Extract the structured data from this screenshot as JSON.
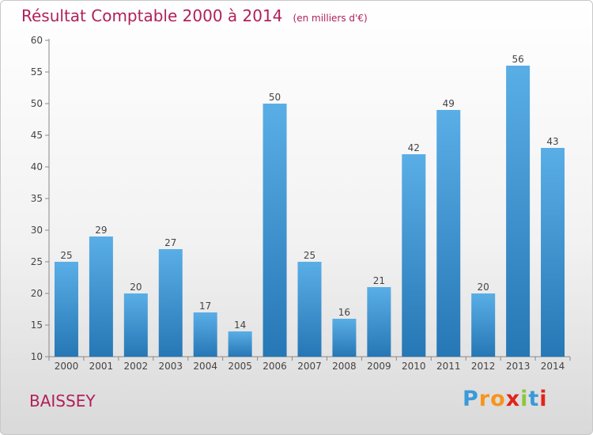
{
  "header": {
    "title": "Résultat Comptable 2000 à 2014",
    "subtitle": "(en milliers d'€)"
  },
  "commune": "BAISSEY",
  "logo": {
    "letters": [
      "P",
      "r",
      "o",
      "x",
      "i",
      "t",
      "i"
    ],
    "colors": [
      "#3a9ad9",
      "#f7941d",
      "#f7941d",
      "#e2231a",
      "#8dc63f",
      "#3a9ad9",
      "#e2231a"
    ]
  },
  "colors": {
    "bar_light": "#5aaee6",
    "bar_dark": "#2677b5",
    "text": "#444444",
    "grid": "#cccccc",
    "title": "#b0205a"
  },
  "chart_data": {
    "type": "bar",
    "categories": [
      "2000",
      "2001",
      "2002",
      "2003",
      "2004",
      "2005",
      "2006",
      "2007",
      "2008",
      "2009",
      "2010",
      "2011",
      "2012",
      "2013",
      "2014"
    ],
    "values": [
      25,
      29,
      20,
      27,
      17,
      14,
      50,
      25,
      16,
      21,
      42,
      49,
      20,
      56,
      43
    ],
    "ylim": [
      10,
      60
    ],
    "yticks": [
      10,
      15,
      20,
      25,
      30,
      35,
      40,
      45,
      50,
      55,
      60
    ],
    "grid": false,
    "data_labels": true
  }
}
